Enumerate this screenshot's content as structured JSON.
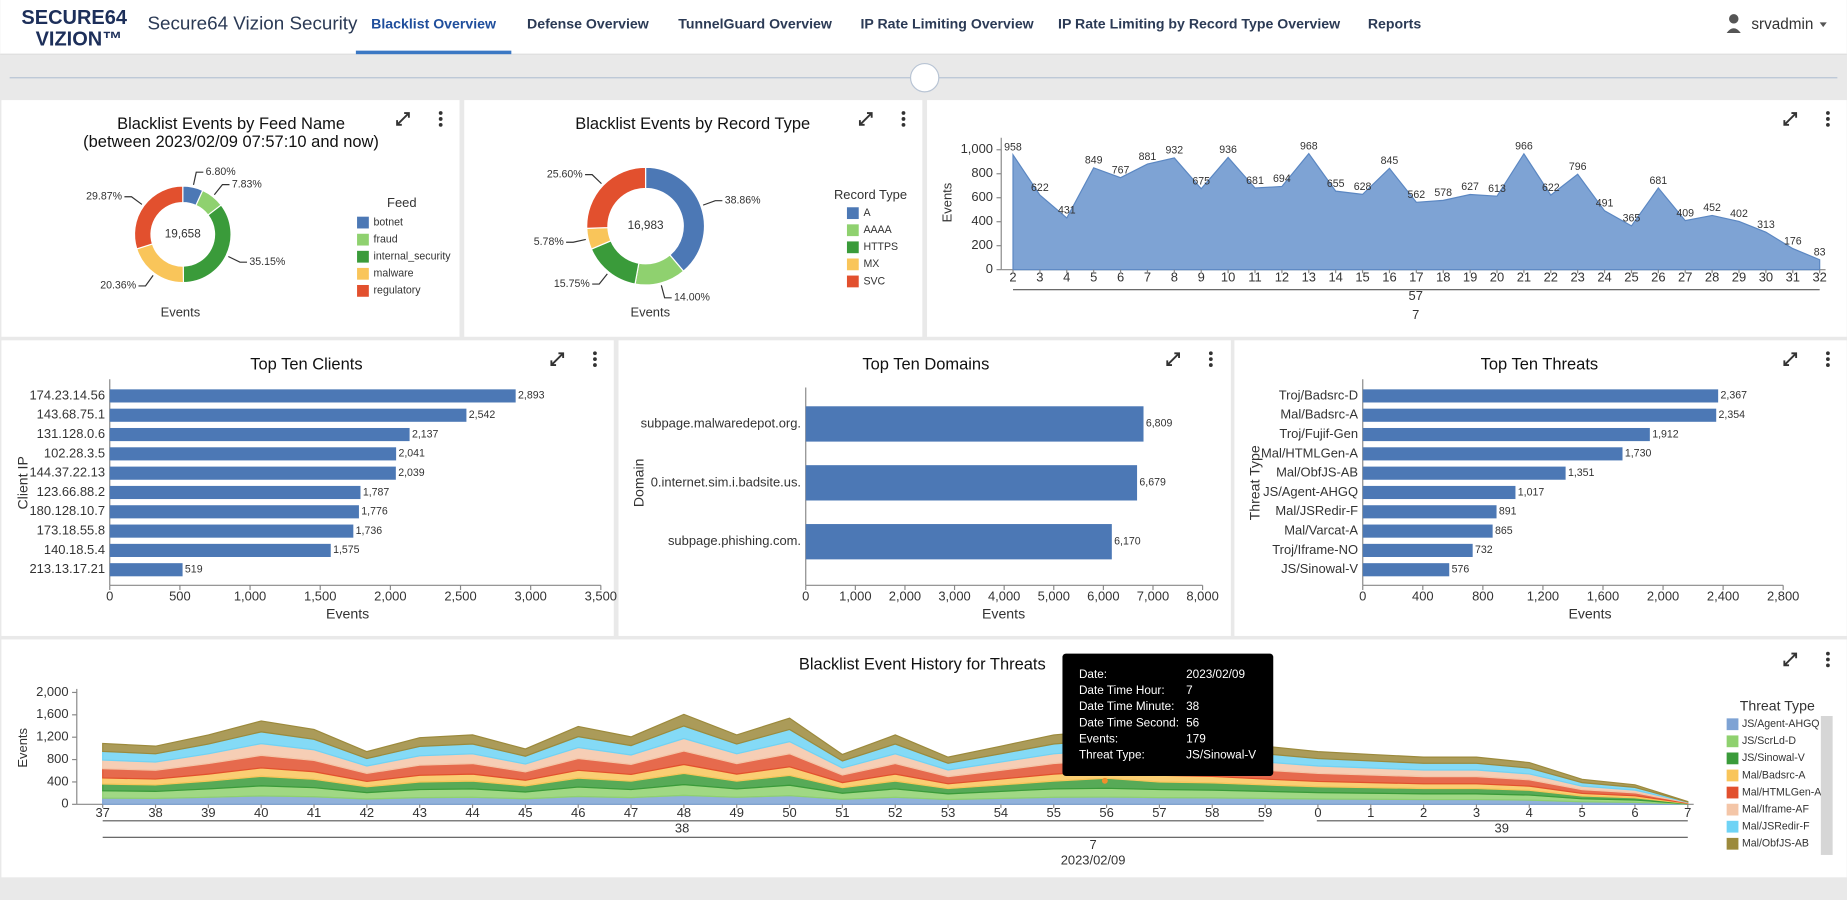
{
  "header": {
    "logo": [
      "SECURE64",
      "VIZION™"
    ],
    "app_title": "Secure64 Vizion Security",
    "tabs": [
      "Blacklist Overview",
      "Defense Overview",
      "TunnelGuard Overview",
      "IP Rate Limiting Overview",
      "IP Rate Limiting by Record Type Overview",
      "Reports"
    ],
    "active_tab": 0,
    "user": "srvadmin"
  },
  "chart_data": [
    {
      "type": "pie",
      "title": "Blacklist Events by Feed Name",
      "subtitle": "(between 2023/02/09 07:57:10 and now)",
      "center_label": "19,658",
      "x_label": "Events",
      "legend_title": "Feed",
      "categories": [
        "botnet",
        "fraud",
        "internal_security",
        "malware",
        "regulatory"
      ],
      "values": [
        6.8,
        7.83,
        35.15,
        20.36,
        29.87
      ],
      "value_labels": [
        "6.80%",
        "7.83%",
        "35.15%",
        "20.36%",
        "29.87%"
      ],
      "colors": [
        "#4c78b5",
        "#8fd16f",
        "#3a9b3a",
        "#f9c55a",
        "#e2502e"
      ]
    },
    {
      "type": "pie",
      "title": "Blacklist Events by Record Type",
      "center_label": "16,983",
      "x_label": "Events",
      "legend_title": "Record Type",
      "categories": [
        "A",
        "AAAA",
        "HTTPS",
        "MX",
        "SVC"
      ],
      "values": [
        38.86,
        14.0,
        15.75,
        5.78,
        25.6
      ],
      "value_labels": [
        "38.86%",
        "14.00%",
        "15.75%",
        "5.78%",
        "25.60%"
      ],
      "colors": [
        "#4c78b5",
        "#8fd16f",
        "#3a9b3a",
        "#f9c55a",
        "#e2502e"
      ]
    },
    {
      "type": "area",
      "y_label": "Events",
      "x": [
        2,
        3,
        4,
        5,
        6,
        7,
        8,
        9,
        10,
        11,
        12,
        13,
        14,
        15,
        16,
        17,
        18,
        19,
        20,
        21,
        22,
        23,
        24,
        25,
        26,
        27,
        28,
        29,
        30,
        31,
        32
      ],
      "values": [
        958,
        622,
        431,
        849,
        767,
        881,
        932,
        675,
        936,
        681,
        694,
        968,
        655,
        628,
        845,
        562,
        578,
        627,
        613,
        966,
        622,
        796,
        491,
        365,
        681,
        409,
        452,
        402,
        313,
        176,
        83
      ],
      "xlim": [
        2,
        32
      ],
      "ylim": [
        0,
        1100
      ],
      "yticks": [
        0,
        200,
        400,
        600,
        800,
        {
          "value": 1000,
          "label": "1,000"
        }
      ],
      "x_group_labels": [
        "57",
        "7"
      ],
      "color": "#7ea3d4"
    },
    {
      "type": "bar",
      "orientation": "horizontal",
      "title": "Top Ten Clients",
      "y_label": "Client IP",
      "x_label": "Events",
      "categories": [
        "174.23.14.56",
        "143.68.75.1",
        "131.128.0.6",
        "102.28.3.5",
        "144.37.22.13",
        "123.66.88.2",
        "180.128.10.7",
        "173.18.55.8",
        "140.18.5.4",
        "213.13.17.21"
      ],
      "values": [
        2893,
        2542,
        2137,
        2041,
        2039,
        1787,
        1776,
        1736,
        1575,
        519
      ],
      "value_labels": [
        "2,893",
        "2,542",
        "2,137",
        "2,041",
        "2,039",
        "1,787",
        "1,776",
        "1,736",
        "1,575",
        "519"
      ],
      "xlim": [
        0,
        3500
      ],
      "xticks": [
        0,
        500,
        {
          "value": 1000,
          "label": "1,000"
        },
        {
          "value": 1500,
          "label": "1,500"
        },
        {
          "value": 2000,
          "label": "2,000"
        },
        {
          "value": 2500,
          "label": "2,500"
        },
        {
          "value": 3000,
          "label": "3,000"
        },
        {
          "value": 3500,
          "label": "3,500"
        }
      ],
      "color": "#4c78b5"
    },
    {
      "type": "bar",
      "orientation": "horizontal",
      "title": "Top Ten Domains",
      "y_label": "Domain",
      "x_label": "Events",
      "categories": [
        "subpage.malwaredepot.org.",
        "0.internet.sim.i.badsite.us.",
        "subpage.phishing.com."
      ],
      "values": [
        6809,
        6679,
        6170
      ],
      "value_labels": [
        "6,809",
        "6,679",
        "6,170"
      ],
      "xlim": [
        0,
        8000
      ],
      "xticks": [
        0,
        {
          "value": 1000,
          "label": "1,000"
        },
        {
          "value": 2000,
          "label": "2,000"
        },
        {
          "value": 3000,
          "label": "3,000"
        },
        {
          "value": 4000,
          "label": "4,000"
        },
        {
          "value": 5000,
          "label": "5,000"
        },
        {
          "value": 6000,
          "label": "6,000"
        },
        {
          "value": 7000,
          "label": "7,000"
        },
        {
          "value": 8000,
          "label": "8,000"
        }
      ],
      "color": "#4c78b5"
    },
    {
      "type": "bar",
      "orientation": "horizontal",
      "title": "Top Ten Threats",
      "y_label": "Threat Type",
      "x_label": "Events",
      "categories": [
        "Troj/Badsrc-D",
        "Mal/Badsrc-A",
        "Troj/Fujif-Gen",
        "Mal/HTMLGen-A",
        "Mal/ObfJS-AB",
        "JS/Agent-AHGQ",
        "Mal/JSRedir-F",
        "Mal/Varcat-A",
        "Troj/Iframe-NO",
        "JS/Sinowal-V"
      ],
      "values": [
        2367,
        2354,
        1912,
        1730,
        1351,
        1017,
        891,
        865,
        732,
        576
      ],
      "value_labels": [
        "2,367",
        "2,354",
        "1,912",
        "1,730",
        "1,351",
        "1,017",
        "891",
        "865",
        "732",
        "576"
      ],
      "xlim": [
        0,
        2800
      ],
      "xticks": [
        0,
        400,
        800,
        {
          "value": 1200,
          "label": "1,200"
        },
        {
          "value": 1600,
          "label": "1,600"
        },
        {
          "value": 2000,
          "label": "2,000"
        },
        {
          "value": 2400,
          "label": "2,400"
        },
        {
          "value": 2800,
          "label": "2,800"
        }
      ],
      "color": "#4c78b5"
    },
    {
      "type": "stacked_area",
      "title": "Blacklist Event History for Threats",
      "y_label": "Events",
      "legend_title": "Threat Type",
      "categories": [
        "37",
        "38",
        "39",
        "40",
        "41",
        "42",
        "43",
        "44",
        "45",
        "46",
        "47",
        "48",
        "49",
        "50",
        "51",
        "52",
        "53",
        "54",
        "55",
        "56",
        "57",
        "58",
        "59",
        "0",
        "1",
        "2",
        "3",
        "4",
        "5",
        "6",
        "7"
      ],
      "ylim": [
        0,
        2000
      ],
      "yticks": [
        0,
        400,
        800,
        {
          "value": 1200,
          "label": "1,200"
        },
        {
          "value": 1600,
          "label": "1,600"
        },
        {
          "value": 2000,
          "label": "2,000"
        }
      ],
      "x_group_labels": [
        "38",
        "39",
        "7",
        "2023/02/09"
      ],
      "series": [
        {
          "name": "JS/Agent-AHGQ",
          "color": "#7ea3d4",
          "values": [
            110,
            105,
            125,
            150,
            135,
            95,
            120,
            125,
            100,
            140,
            120,
            160,
            125,
            155,
            90,
            125,
            85,
            105,
            125,
            130,
            120,
            115,
            105,
            95,
            90,
            85,
            85,
            75,
            45,
            35,
            5
          ]
        },
        {
          "name": "JS/ScrLd-D",
          "color": "#8fd16f",
          "values": [
            132,
            126,
            150,
            180,
            162,
            114,
            144,
            150,
            120,
            168,
            144,
            192,
            150,
            186,
            108,
            150,
            102,
            126,
            150,
            156,
            144,
            138,
            126,
            114,
            108,
            102,
            102,
            90,
            54,
            42,
            6
          ]
        },
        {
          "name": "JS/Sinowal-V",
          "color": "#3a9b3a",
          "values": [
            120,
            115,
            140,
            170,
            150,
            105,
            135,
            140,
            110,
            160,
            150,
            200,
            140,
            175,
            100,
            140,
            95,
            115,
            140,
            179,
            135,
            130,
            115,
            105,
            100,
            95,
            95,
            85,
            50,
            40,
            5
          ]
        },
        {
          "name": "Mal/Badsrc-A",
          "color": "#f9c55a",
          "values": [
            110,
            105,
            125,
            150,
            135,
            95,
            120,
            125,
            100,
            140,
            120,
            160,
            125,
            155,
            90,
            125,
            85,
            105,
            125,
            130,
            120,
            115,
            105,
            95,
            90,
            85,
            85,
            75,
            45,
            35,
            5
          ]
        },
        {
          "name": "Mal/HTMLGen-A",
          "color": "#e2502e",
          "values": [
            165,
            158,
            188,
            225,
            203,
            143,
            180,
            188,
            150,
            210,
            180,
            240,
            188,
            233,
            135,
            188,
            128,
            158,
            188,
            195,
            180,
            173,
            158,
            143,
            135,
            128,
            128,
            113,
            68,
            53,
            8
          ]
        },
        {
          "name": "Mal/Iframe-AF",
          "color": "#f4c6a8",
          "values": [
            154,
            147,
            175,
            210,
            189,
            133,
            168,
            175,
            140,
            196,
            168,
            224,
            175,
            217,
            126,
            175,
            119,
            147,
            175,
            182,
            168,
            161,
            147,
            133,
            126,
            119,
            119,
            105,
            63,
            49,
            7
          ]
        },
        {
          "name": "Mal/JSRedir-F",
          "color": "#6fd3f5",
          "values": [
            154,
            147,
            175,
            210,
            189,
            133,
            168,
            175,
            140,
            196,
            168,
            224,
            175,
            217,
            126,
            175,
            119,
            147,
            175,
            182,
            168,
            161,
            147,
            133,
            126,
            119,
            119,
            105,
            63,
            49,
            7
          ]
        },
        {
          "name": "Mal/ObfJS-AB",
          "color": "#9c8a3c",
          "values": [
            143,
            137,
            163,
            195,
            176,
            124,
            156,
            163,
            130,
            182,
            156,
            208,
            163,
            202,
            117,
            163,
            111,
            137,
            163,
            169,
            156,
            150,
            137,
            124,
            117,
            111,
            111,
            98,
            59,
            46,
            7
          ]
        }
      ],
      "tooltip": [
        [
          "Date:",
          "2023/02/09"
        ],
        [
          "Date Time Hour:",
          7
        ],
        [
          "Date Time Minute:",
          38
        ],
        [
          "Date Time Second:",
          56
        ],
        [
          "Events:",
          179
        ],
        [
          "Threat Type:",
          "JS/Sinowal-V"
        ]
      ]
    }
  ]
}
